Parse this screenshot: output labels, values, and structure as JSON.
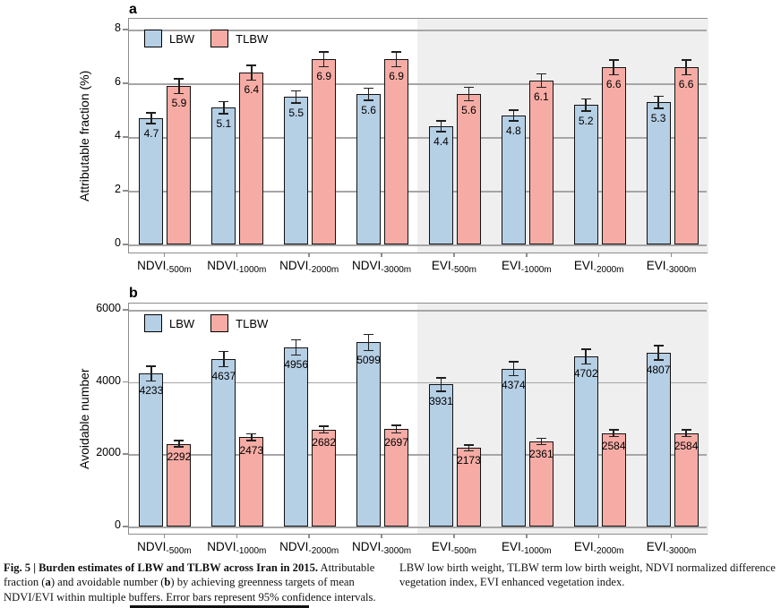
{
  "colors": {
    "lbw_fill": "#b5cfe5",
    "tlbw_fill": "#f6aca5",
    "bar_border": "#111111",
    "grid_line": "#a6a6a6",
    "plot_border": "#8d8d8d",
    "evi_shade": "#efefef",
    "error_bar": "#1f1f1f",
    "axis_text": "#000000"
  },
  "legend": {
    "lbw_label": "LBW",
    "tlbw_label": "TLBW"
  },
  "chart_data": [
    {
      "type": "bar",
      "panel_label": "a",
      "ylabel": "Attributable fraction (%)",
      "ylim": [
        0,
        8
      ],
      "yticks": [
        0,
        2,
        4,
        6,
        8
      ],
      "ytick_labels": [
        "0",
        "2",
        "4",
        "6",
        "8"
      ],
      "grid": true,
      "legend_position": "top-left-inside",
      "shaded_region_note": "EVI categories (indices 4-7) have light gray background",
      "categories": [
        {
          "base": "NDVI",
          "sub": "-500m"
        },
        {
          "base": "NDVI",
          "sub": "-1000m"
        },
        {
          "base": "NDVI",
          "sub": "-2000m"
        },
        {
          "base": "NDVI",
          "sub": "-3000m"
        },
        {
          "base": "EVI",
          "sub": "-500m"
        },
        {
          "base": "EVI",
          "sub": "-1000m"
        },
        {
          "base": "EVI",
          "sub": "-2000m"
        },
        {
          "base": "EVI",
          "sub": "-3000m"
        }
      ],
      "series": [
        {
          "name": "LBW",
          "values": [
            4.7,
            5.1,
            5.5,
            5.6,
            4.4,
            4.8,
            5.2,
            5.3
          ],
          "labels": [
            "4.7",
            "5.1",
            "5.5",
            "5.6",
            "4.4",
            "4.8",
            "5.2",
            "5.3"
          ],
          "ci": [
            0.22,
            0.25,
            0.25,
            0.25,
            0.22,
            0.22,
            0.25,
            0.25
          ]
        },
        {
          "name": "TLBW",
          "values": [
            5.9,
            6.4,
            6.9,
            6.9,
            5.6,
            6.1,
            6.6,
            6.6
          ],
          "labels": [
            "5.9",
            "6.4",
            "6.9",
            "6.9",
            "5.6",
            "6.1",
            "6.6",
            "6.6"
          ],
          "ci": [
            0.3,
            0.3,
            0.3,
            0.3,
            0.27,
            0.28,
            0.3,
            0.3
          ]
        }
      ]
    },
    {
      "type": "bar",
      "panel_label": "b",
      "ylabel": "Avoidable number",
      "ylim": [
        0,
        6000
      ],
      "yticks": [
        0,
        2000,
        4000,
        6000
      ],
      "ytick_labels": [
        "0",
        "2000",
        "4000",
        "6000"
      ],
      "grid": true,
      "legend_position": "top-left-inside",
      "shaded_region_note": "EVI categories (indices 4-7) have light gray background",
      "categories": [
        {
          "base": "NDVI",
          "sub": "-500m"
        },
        {
          "base": "NDVI",
          "sub": "-1000m"
        },
        {
          "base": "NDVI",
          "sub": "-2000m"
        },
        {
          "base": "NDVI",
          "sub": "-3000m"
        },
        {
          "base": "EVI",
          "sub": "-500m"
        },
        {
          "base": "EVI",
          "sub": "-1000m"
        },
        {
          "base": "EVI",
          "sub": "-2000m"
        },
        {
          "base": "EVI",
          "sub": "-3000m"
        }
      ],
      "series": [
        {
          "name": "LBW",
          "values": [
            4233,
            4637,
            4956,
            5099,
            3931,
            4374,
            4702,
            4807
          ],
          "labels": [
            "4233",
            "4637",
            "4956",
            "5099",
            "3931",
            "4374",
            "4702",
            "4807"
          ],
          "ci": [
            220,
            230,
            230,
            240,
            200,
            210,
            220,
            220
          ]
        },
        {
          "name": "TLBW",
          "values": [
            2292,
            2473,
            2682,
            2697,
            2173,
            2361,
            2584,
            2584
          ],
          "labels": [
            "2292",
            "2473",
            "2682",
            "2697",
            "2173",
            "2361",
            "2584",
            "2584"
          ],
          "ci": [
            110,
            110,
            115,
            120,
            100,
            105,
            110,
            110
          ]
        }
      ]
    }
  ],
  "caption": {
    "left_segments": [
      {
        "text": "Fig. 5 | Burden estimates of LBW and TLBW across Iran in 2015.",
        "bold": true
      },
      {
        "text": " Attributable fraction (",
        "bold": false
      },
      {
        "text": "a",
        "bold": true
      },
      {
        "text": ") and avoidable number (",
        "bold": false
      },
      {
        "text": "b",
        "bold": true
      },
      {
        "text": ") by achieving greenness targets of mean NDVI/EVI within multiple buffers. Error bars represent 95% confidence intervals.",
        "bold": false
      }
    ],
    "right_segments": [
      {
        "text": "LBW low birth weight, TLBW term low birth weight, NDVI normalized difference vegetation index, EVI enhanced vegetation index.",
        "bold": false
      }
    ]
  }
}
